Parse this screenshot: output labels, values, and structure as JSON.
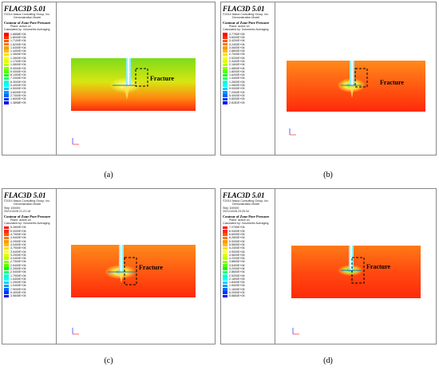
{
  "panels": [
    {
      "id": "a",
      "app_title": "FLAC3D 5.01",
      "copyright": "©2014 Itasca Consulting Group, Inc.",
      "model": "Demonstration Model",
      "step": "",
      "date": "",
      "contour_title": "Contour of Zone Pore Pressure",
      "plane": "Plane: active on",
      "averaging": "Calculated by: Volumetric Averaging",
      "scale_values": [
        "1.8858E+06",
        "1.8000E+06",
        "1.7100E+06",
        "1.6200E+06",
        "1.5300E+06",
        "1.4400E+06",
        "1.3500E+06",
        "1.2600E+06",
        "1.1700E+06",
        "1.0800E+06",
        "9.9000E+05",
        "9.0000E+05",
        "8.1000E+05",
        "7.2000E+05",
        "6.3000E+05",
        "5.4000E+05",
        "4.5000E+05",
        "3.6000E+05",
        "2.7000E+05",
        "1.8000E+05",
        "1.3898E+05"
      ],
      "fracture_label": "Fracture",
      "caption": "(a)"
    },
    {
      "id": "b",
      "app_title": "FLAC3D 5.01",
      "copyright": "©2014 Itasca Consulting Group, Inc.",
      "model": "Demonstration Model",
      "step": "",
      "date": "",
      "contour_title": "Contour of Zone Pore Pressure",
      "plane": "Plane: active on",
      "averaging": "Calculated by: Volumetric Averaging",
      "scale_values": [
        "3.7750E+06",
        "3.6000E+06",
        "3.4200E+06",
        "3.2400E+06",
        "3.0600E+06",
        "2.8800E+06",
        "2.7000E+06",
        "2.5200E+06",
        "2.3400E+06",
        "2.1600E+06",
        "1.9800E+06",
        "1.8000E+06",
        "1.6200E+06",
        "1.4400E+06",
        "1.2600E+06",
        "1.0800E+06",
        "9.0000E+05",
        "7.2000E+05",
        "5.4000E+05",
        "3.6000E+05",
        "2.6281E+05"
      ],
      "fracture_label": "Fracture",
      "caption": "(b)"
    },
    {
      "id": "c",
      "app_title": "FLAC3D 5.01",
      "copyright": "©2014 Itasca Consulting Group, Inc.",
      "model": "Demonstration Model",
      "step": "Step 100000",
      "date": "2021/10/28 21:21:18",
      "contour_title": "Contour of Zone Pore Pressure",
      "plane": "Plane: active on",
      "averaging": "Calculated by: Volumetric Averaging",
      "scale_values": [
        "5.2800E+06",
        "5.0000E+06",
        "4.7900E+06",
        "4.5400E+06",
        "4.2900E+06",
        "4.0400E+06",
        "3.7900E+06",
        "3.5400E+06",
        "3.2900E+06",
        "3.0400E+06",
        "2.7900E+06",
        "2.5400E+06",
        "2.2900E+06",
        "2.0400E+06",
        "1.7900E+06",
        "1.5400E+06",
        "1.2900E+06",
        "1.0400E+06",
        "7.9000E+05",
        "5.4000E+05",
        "3.9845E+05"
      ],
      "fracture_label": "Fracture",
      "caption": "(c)"
    },
    {
      "id": "d",
      "app_title": "FLAC3D 5.01",
      "copyright": "©2014 Itasca Consulting Group, Inc.",
      "model": "Demonstration Model",
      "step": "Step 100000",
      "date": "2021/10/28 23:25:34",
      "contour_title": "Contour of Zone Pore Pressure",
      "plane": "Plane: active on",
      "averaging": "Calculated by: Volumetric Averaging",
      "scale_values": [
        "7.2750E+06",
        "6.9400E+06",
        "6.6000E+06",
        "6.2600E+06",
        "5.9200E+06",
        "5.5800E+06",
        "5.2400E+06",
        "4.9000E+06",
        "4.5600E+06",
        "4.2200E+06",
        "3.8800E+06",
        "3.5400E+06",
        "3.2000E+06",
        "2.8600E+06",
        "2.5200E+06",
        "2.1800E+06",
        "1.8400E+06",
        "1.5000E+06",
        "1.1600E+06",
        "8.2000E+05",
        "5.6664E+05"
      ],
      "fracture_label": "Fracture",
      "caption": "(d)"
    }
  ],
  "colors": {
    "scale": [
      "#ff0000",
      "#ff2a00",
      "#ff5500",
      "#ff7700",
      "#ff9900",
      "#ffbb00",
      "#ffdd00",
      "#ffff00",
      "#ddff00",
      "#bbff00",
      "#88ff00",
      "#55ff00",
      "#00ff00",
      "#00ff77",
      "#00ffcc",
      "#00ffff",
      "#00ccff",
      "#0099ff",
      "#0066ff",
      "#0033ff",
      "#0000ff"
    ],
    "panel_a_top": "#7ddc1a",
    "panel_a_bottom": "#ff2a0a",
    "panel_bcd_top": "#ff8a1a",
    "panel_bcd_bottom": "#ff2a0a",
    "border": "#888888",
    "fracture_box": "#000000"
  }
}
